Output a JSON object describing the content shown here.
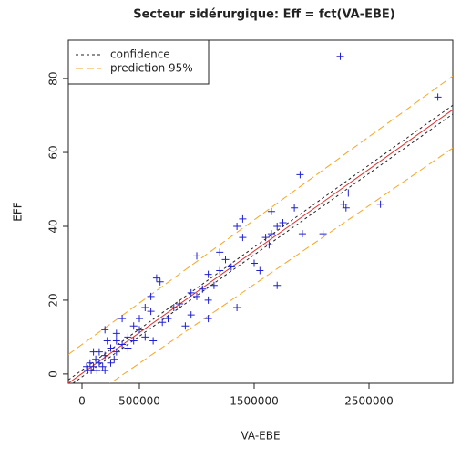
{
  "chart_data": {
    "type": "scatter",
    "title": "Secteur sidérurgique: Eff = fct(VA-EBE)",
    "x_label": "VA-EBE",
    "y_label": "EFF",
    "xlim": [
      -119000,
      3230000
    ],
    "ylim": [
      -2.5,
      90.4
    ],
    "xticks": [
      0,
      500000,
      1500000,
      2500000
    ],
    "yticks": [
      0,
      20,
      40,
      60,
      80
    ],
    "legend_position": "top-left",
    "points": {
      "color": "#2020d0",
      "x": [
        2250000,
        3100000,
        2600000,
        2300000,
        2280000,
        2320000,
        2100000,
        1900000,
        1850000,
        1920000,
        1750000,
        1700000,
        1650000,
        1600000,
        1650000,
        1700000,
        1630000,
        1500000,
        1550000,
        1400000,
        1350000,
        1400000,
        1200000,
        1250000,
        1300000,
        1350000,
        1200000,
        1100000,
        1150000,
        1100000,
        1000000,
        1050000,
        1000000,
        1100000,
        950000,
        950000,
        900000,
        850000,
        800000,
        750000,
        700000,
        680000,
        650000,
        600000,
        600000,
        550000,
        500000,
        500000,
        450000,
        450000,
        400000,
        400000,
        350000,
        350000,
        300000,
        300000,
        280000,
        250000,
        250000,
        220000,
        200000,
        200000,
        180000,
        150000,
        150000,
        120000,
        100000,
        80000,
        50000,
        100000,
        130000,
        70000,
        40000,
        200000,
        300000,
        550000,
        620000
      ],
      "values": [
        86,
        75,
        46,
        45,
        46,
        49,
        38,
        54,
        45,
        38,
        41,
        40,
        44,
        37,
        38,
        24,
        35,
        30,
        28,
        42,
        40,
        37,
        33,
        31,
        29,
        18,
        28,
        27,
        24,
        20,
        32,
        23,
        21,
        15,
        22,
        16,
        13,
        19,
        18,
        15,
        14,
        25,
        26,
        21,
        17,
        18,
        15,
        12,
        9,
        13,
        10,
        7,
        15,
        8,
        11,
        6,
        4,
        7,
        3,
        9,
        12,
        5,
        2,
        6,
        3,
        4,
        2,
        1,
        1,
        6,
        1,
        3,
        2,
        1,
        9,
        10,
        9
      ]
    },
    "fit": {
      "color": "#e03030",
      "x": [
        -119000,
        3230000
      ],
      "values": [
        -2.5,
        71.6
      ]
    },
    "series": [
      {
        "name": "confidence",
        "color": "#222222",
        "bands": [
          {
            "x": [
              -119000,
              3230000
            ],
            "values": [
              -1.6,
              72.8
            ]
          },
          {
            "x": [
              -119000,
              3230000
            ],
            "values": [
              -3.4,
              70.4
            ]
          }
        ]
      },
      {
        "name": "prediction 95%",
        "color": "#f5a623",
        "bands": [
          {
            "x": [
              -119000,
              3230000
            ],
            "values": [
              5.3,
              80.7
            ]
          },
          {
            "x": [
              -119000,
              3230000
            ],
            "values": [
              -10.3,
              61.2
            ]
          }
        ]
      }
    ]
  }
}
